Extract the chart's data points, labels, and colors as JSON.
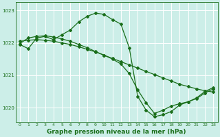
{
  "bg_color": "#cceee8",
  "grid_color": "#ffffff",
  "line_color": "#1a6e1a",
  "marker": "D",
  "markersize": 2,
  "linewidth": 0.9,
  "title": "Graphe pression niveau de la mer (hPa)",
  "title_fontsize": 6.5,
  "xlim": [
    -0.5,
    23.5
  ],
  "ylim": [
    1019.55,
    1023.25
  ],
  "yticks": [
    1020,
    1021,
    1022,
    1023
  ],
  "xticks": [
    0,
    1,
    2,
    3,
    4,
    5,
    6,
    7,
    8,
    9,
    10,
    11,
    12,
    13,
    14,
    15,
    16,
    17,
    18,
    19,
    20,
    21,
    22,
    23
  ],
  "line1_x": [
    0,
    1,
    2,
    3,
    4,
    5,
    6,
    7,
    8,
    9,
    10,
    11,
    12,
    13,
    14,
    15,
    16,
    17,
    18,
    19,
    20,
    21,
    22,
    23
  ],
  "line1_y": [
    1021.95,
    1021.82,
    1022.15,
    1022.2,
    1022.1,
    1022.25,
    1022.4,
    1022.65,
    1022.82,
    1022.92,
    1022.88,
    1022.72,
    1022.58,
    1021.85,
    1020.35,
    1019.92,
    1019.72,
    1019.78,
    1019.88,
    1020.08,
    1020.18,
    1020.28,
    1020.45,
    1020.58
  ],
  "line2_x": [
    0,
    1,
    2,
    3,
    4,
    5,
    6,
    7,
    8,
    9,
    10,
    11,
    12,
    13,
    14,
    15,
    16,
    17,
    18,
    19,
    20,
    21,
    22,
    23
  ],
  "line2_y": [
    1022.05,
    1022.08,
    1022.1,
    1022.08,
    1022.05,
    1022.0,
    1021.95,
    1021.88,
    1021.8,
    1021.72,
    1021.62,
    1021.52,
    1021.42,
    1021.32,
    1021.22,
    1021.12,
    1021.02,
    1020.92,
    1020.82,
    1020.72,
    1020.65,
    1020.58,
    1020.52,
    1020.48
  ],
  "line3_x": [
    0,
    1,
    2,
    3,
    4,
    5,
    6,
    7,
    8,
    9,
    10,
    11,
    12,
    13,
    14,
    15,
    16,
    17,
    18,
    19,
    20,
    21,
    22,
    23
  ],
  "line3_y": [
    1021.98,
    1022.15,
    1022.2,
    1022.22,
    1022.18,
    1022.12,
    1022.05,
    1021.95,
    1021.85,
    1021.73,
    1021.62,
    1021.5,
    1021.35,
    1021.05,
    1020.55,
    1020.15,
    1019.82,
    1019.92,
    1020.05,
    1020.12,
    1020.18,
    1020.3,
    1020.5,
    1020.62
  ]
}
